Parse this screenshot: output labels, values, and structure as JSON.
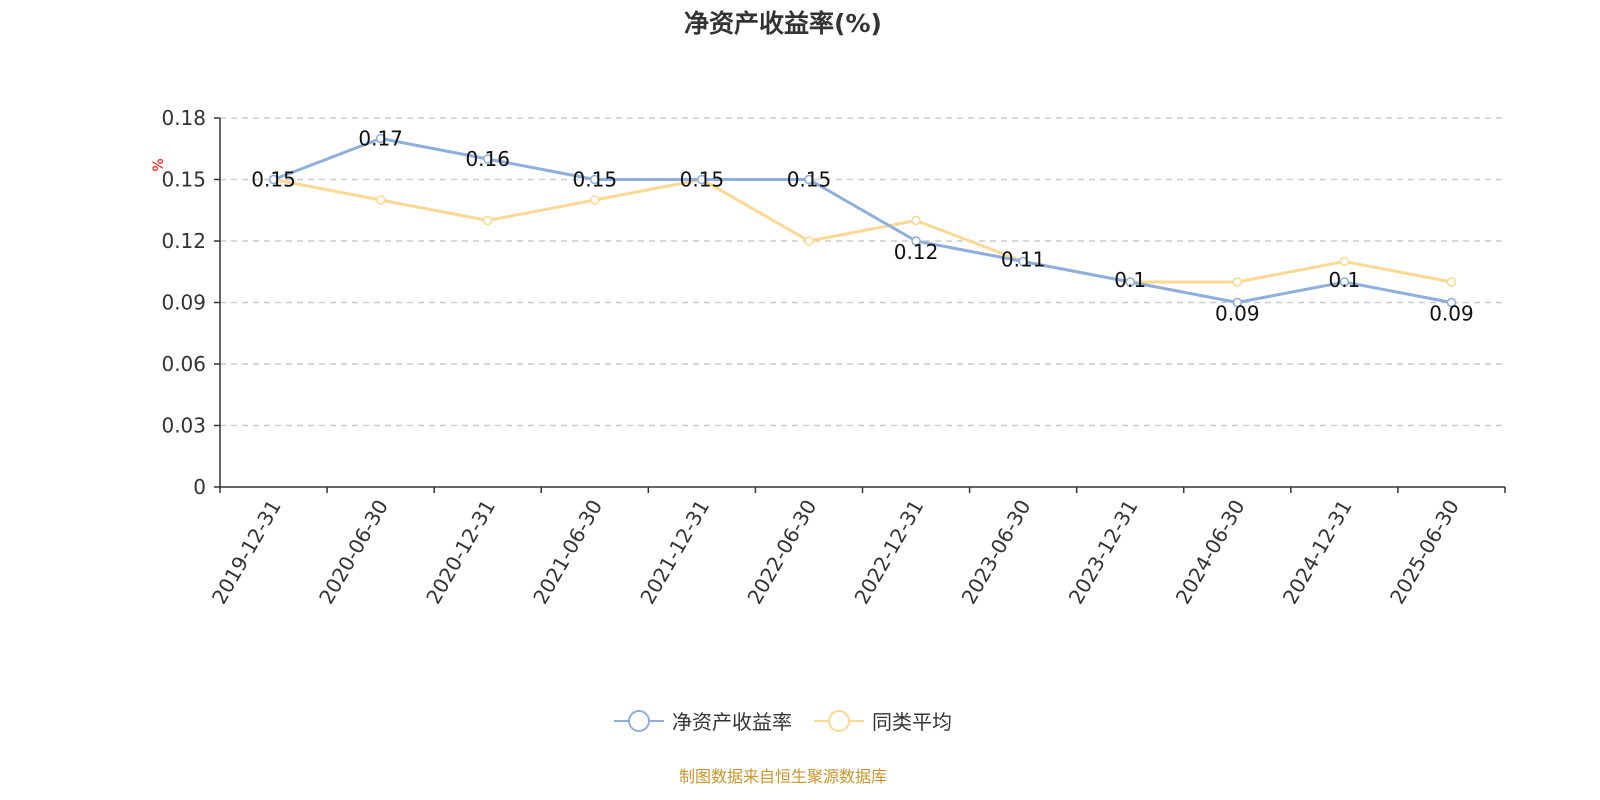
{
  "chart_data": {
    "type": "line",
    "title": "净资产收益率(%)",
    "ylabel": "%",
    "xlabel": "",
    "ylim": [
      0,
      0.18
    ],
    "yticks": [
      0,
      0.03,
      0.06,
      0.09,
      0.12,
      0.15,
      0.18
    ],
    "ytick_labels": [
      "0",
      "0.03",
      "0.06",
      "0.09",
      "0.12",
      "0.15",
      "0.18"
    ],
    "grid": true,
    "legend_position": "bottom-center",
    "categories": [
      "2019-12-31",
      "2020-06-30",
      "2020-12-31",
      "2021-06-30",
      "2021-12-31",
      "2022-06-30",
      "2022-12-31",
      "2023-06-30",
      "2023-12-31",
      "2024-06-30",
      "2024-12-31",
      "2025-06-30"
    ],
    "series": [
      {
        "name": "净资产收益率",
        "color": "#8eaedb",
        "show_labels": true,
        "values": [
          0.15,
          0.17,
          0.16,
          0.15,
          0.15,
          0.15,
          0.12,
          0.11,
          0.1,
          0.09,
          0.1,
          0.09
        ],
        "labels": [
          "0.15",
          "0.17",
          "0.16",
          "0.15",
          "0.15",
          "0.15",
          "0.12",
          "0.11",
          "0.1",
          "0.09",
          "0.1",
          "0.09"
        ]
      },
      {
        "name": "同类平均",
        "color": "#fcd993",
        "show_labels": false,
        "values": [
          0.15,
          0.14,
          0.13,
          0.14,
          0.15,
          0.12,
          0.13,
          0.11,
          0.1,
          0.1,
          0.11,
          0.1
        ]
      }
    ]
  },
  "source": "制图数据来自恒生聚源数据库"
}
